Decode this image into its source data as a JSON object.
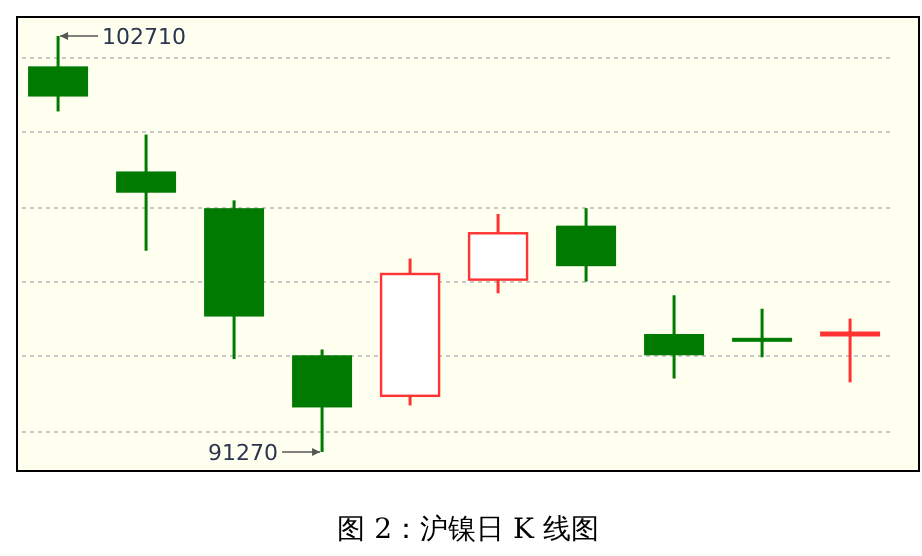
{
  "chart_data": {
    "type": "candlestick",
    "title": "图 2：沪镍日 K 线图",
    "categories": [
      null,
      null,
      null,
      null,
      null,
      null,
      null,
      null,
      null,
      null
    ],
    "ohlc": [
      [
        101875,
        102710,
        100635,
        101045
      ],
      [
        98985,
        100000,
        96805,
        98400
      ],
      [
        97975,
        98190,
        93825,
        94995
      ],
      [
        93930,
        94090,
        91270,
        92495
      ],
      [
        92815,
        96590,
        92550,
        96165
      ],
      [
        96010,
        97815,
        95635,
        97285
      ],
      [
        97495,
        97975,
        95955,
        96380
      ],
      [
        94515,
        95580,
        93290,
        93930
      ],
      [
        94410,
        95210,
        93875,
        94300
      ],
      [
        94515,
        94940,
        93185,
        94515
      ]
    ],
    "colors": [
      "#007a00",
      "#007a00",
      "#007a00",
      "#007a00",
      "#ff3333",
      "#ff3333",
      "#007a00",
      "#007a00",
      "#007a00",
      "#ff3333"
    ],
    "annotations": [
      "102710",
      "91270"
    ],
    "grid": "y"
  }
}
